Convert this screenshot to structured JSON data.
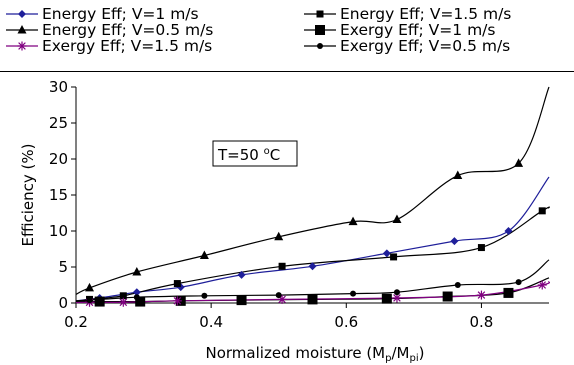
{
  "chart_data": {
    "type": "line",
    "title": "",
    "xlabel": "Normalized moisture (Mp/Mpi)",
    "ylabel": "Efficiency (%)",
    "xlim": [
      0.2,
      0.9
    ],
    "ylim": [
      0,
      30
    ],
    "xticks": [
      0.2,
      0.4,
      0.6,
      0.8
    ],
    "yticks": [
      0,
      5,
      10,
      15,
      20,
      25,
      30
    ],
    "grid": false,
    "legend_position": "top",
    "annotation": "T=50 °C",
    "series": [
      {
        "name": "Energy Eff; V=1 m/s",
        "color": "#1f1f9a",
        "marker": "diamond",
        "x": [
          0.2,
          0.235,
          0.29,
          0.355,
          0.445,
          0.55,
          0.66,
          0.76,
          0.84,
          0.9
        ],
        "y": [
          0.3,
          0.7,
          1.5,
          2.2,
          3.9,
          5.1,
          6.9,
          8.6,
          10.0,
          17.5
        ]
      },
      {
        "name": "Energy Eff; V=1.5 m/s",
        "color": "#000000",
        "marker": "square-small",
        "x": [
          0.2,
          0.22,
          0.27,
          0.35,
          0.505,
          0.67,
          0.8,
          0.89,
          0.9
        ],
        "y": [
          0.2,
          0.5,
          1.0,
          2.7,
          5.1,
          6.4,
          7.7,
          12.8,
          13.2
        ]
      },
      {
        "name": "Energy Eff; V=0.5 m/s",
        "color": "#000000",
        "marker": "triangle",
        "x": [
          0.2,
          0.22,
          0.29,
          0.39,
          0.5,
          0.61,
          0.675,
          0.765,
          0.855,
          0.9
        ],
        "y": [
          1.2,
          2.1,
          4.3,
          6.6,
          9.2,
          11.3,
          11.6,
          17.7,
          19.4,
          30.0
        ]
      },
      {
        "name": "Exergy Eff; V=1 m/s",
        "color": "#000000",
        "marker": "square-large",
        "x": [
          0.2,
          0.235,
          0.295,
          0.355,
          0.445,
          0.55,
          0.66,
          0.75,
          0.84,
          0.9
        ],
        "y": [
          0.2,
          0.2,
          0.2,
          0.3,
          0.4,
          0.5,
          0.6,
          0.9,
          1.4,
          3.5
        ]
      },
      {
        "name": "Exergy Eff; V=1.5 m/s",
        "color": "#800080",
        "marker": "asterisk",
        "x": [
          0.2,
          0.22,
          0.27,
          0.35,
          0.505,
          0.675,
          0.8,
          0.89,
          0.9
        ],
        "y": [
          0.05,
          0.1,
          0.1,
          0.3,
          0.5,
          0.7,
          1.1,
          2.5,
          3.0
        ]
      },
      {
        "name": "Exergy Eff; V=0.5 m/s",
        "color": "#000000",
        "marker": "circle",
        "x": [
          0.2,
          0.22,
          0.29,
          0.39,
          0.5,
          0.61,
          0.675,
          0.765,
          0.855,
          0.9
        ],
        "y": [
          0.3,
          0.4,
          0.8,
          1.0,
          1.1,
          1.3,
          1.5,
          2.5,
          2.9,
          6.0
        ]
      }
    ]
  }
}
